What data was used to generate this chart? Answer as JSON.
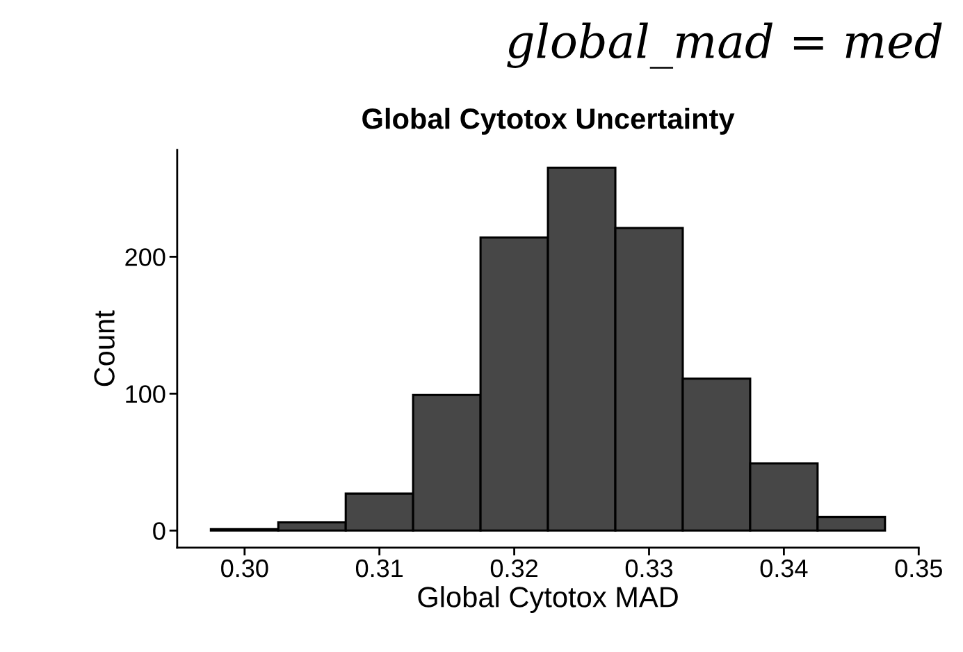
{
  "chart_data": {
    "type": "histogram",
    "title": "Global Cytotox Uncertainty",
    "xlabel": "Global Cytotox MAD",
    "ylabel": "Count",
    "annotations": [
      "global_mad = med"
    ],
    "bins": [
      0.2975,
      0.3025,
      0.3075,
      0.3125,
      0.3175,
      0.3225,
      0.3275,
      0.3325,
      0.3375,
      0.3425,
      0.3475
    ],
    "values": [
      1,
      6,
      27,
      99,
      214,
      265,
      221,
      111,
      49,
      10
    ],
    "color": "#474747",
    "xlim": [
      0.295,
      0.35
    ],
    "xticks": [
      {
        "value": 0.3,
        "label": "0.30"
      },
      {
        "value": 0.31,
        "label": "0.31"
      },
      {
        "value": 0.32,
        "label": "0.32"
      },
      {
        "value": 0.33,
        "label": "0.33"
      },
      {
        "value": 0.34,
        "label": "0.34"
      },
      {
        "value": 0.35,
        "label": "0.35"
      }
    ],
    "ylim": [
      -12.5,
      278
    ],
    "yticks": [
      0,
      100,
      200
    ],
    "grid": false
  }
}
